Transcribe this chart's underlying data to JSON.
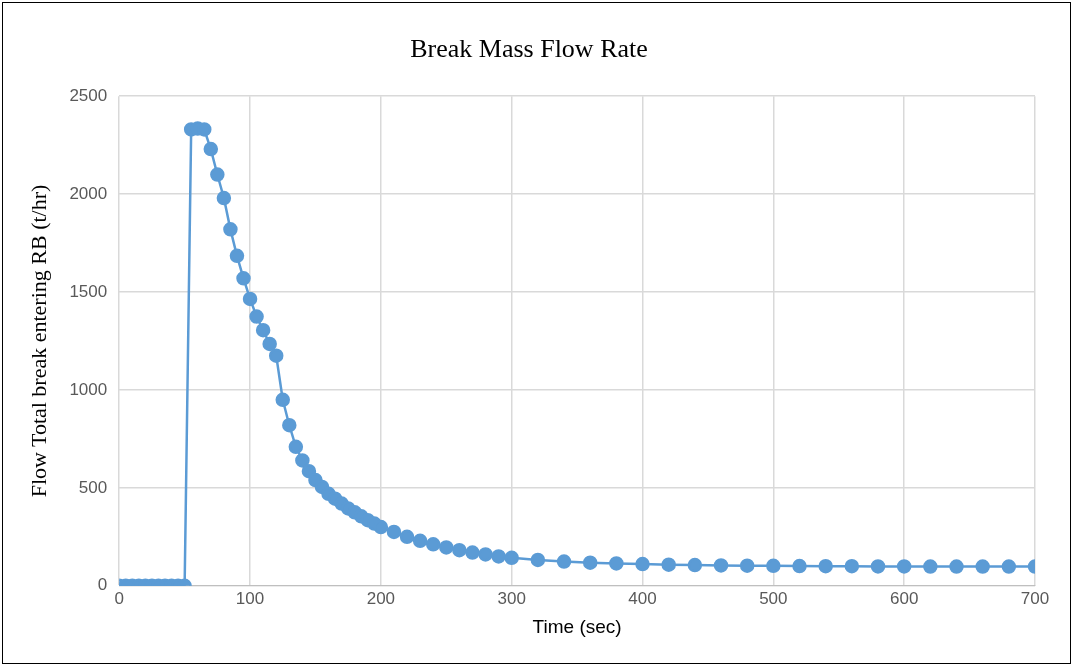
{
  "chart_data": {
    "type": "line",
    "title": "Break Mass Flow Rate",
    "xlabel": "Time (sec)",
    "ylabel": "Flow Total break entering RB (t/hr)",
    "xlim": [
      0,
      700
    ],
    "xticks": [
      0,
      100,
      200,
      300,
      400,
      500,
      600,
      700
    ],
    "ylim": [
      0,
      2500
    ],
    "yticks": [
      0,
      500,
      1000,
      1500,
      2000,
      2500
    ],
    "grid": true,
    "marker": "circle",
    "line_style": "solid",
    "legend": false,
    "series": [
      {
        "color": "#5b9bd5",
        "x": [
          0,
          5,
          10,
          15,
          20,
          25,
          30,
          35,
          40,
          45,
          50,
          55,
          60,
          65,
          70,
          75,
          80,
          85,
          90,
          95,
          100,
          105,
          110,
          115,
          120,
          125,
          130,
          135,
          140,
          145,
          150,
          155,
          160,
          165,
          170,
          175,
          180,
          185,
          190,
          195,
          200,
          210,
          220,
          230,
          240,
          250,
          260,
          270,
          280,
          290,
          300,
          320,
          340,
          360,
          380,
          400,
          420,
          440,
          460,
          480,
          500,
          520,
          540,
          560,
          580,
          600,
          620,
          640,
          660,
          680,
          700
        ],
        "values": [
          0,
          0,
          0,
          0,
          0,
          0,
          0,
          0,
          0,
          0,
          0,
          2330,
          2335,
          2330,
          2230,
          2100,
          1980,
          1820,
          1685,
          1570,
          1465,
          1375,
          1305,
          1235,
          1175,
          950,
          820,
          710,
          640,
          585,
          540,
          505,
          470,
          445,
          420,
          395,
          375,
          355,
          335,
          318,
          300,
          275,
          250,
          230,
          212,
          196,
          182,
          170,
          160,
          150,
          143,
          132,
          124,
          118,
          114,
          111,
          108,
          106,
          104,
          103,
          102,
          101,
          100,
          100,
          99,
          99,
          98,
          98,
          98,
          98,
          98
        ]
      }
    ]
  }
}
